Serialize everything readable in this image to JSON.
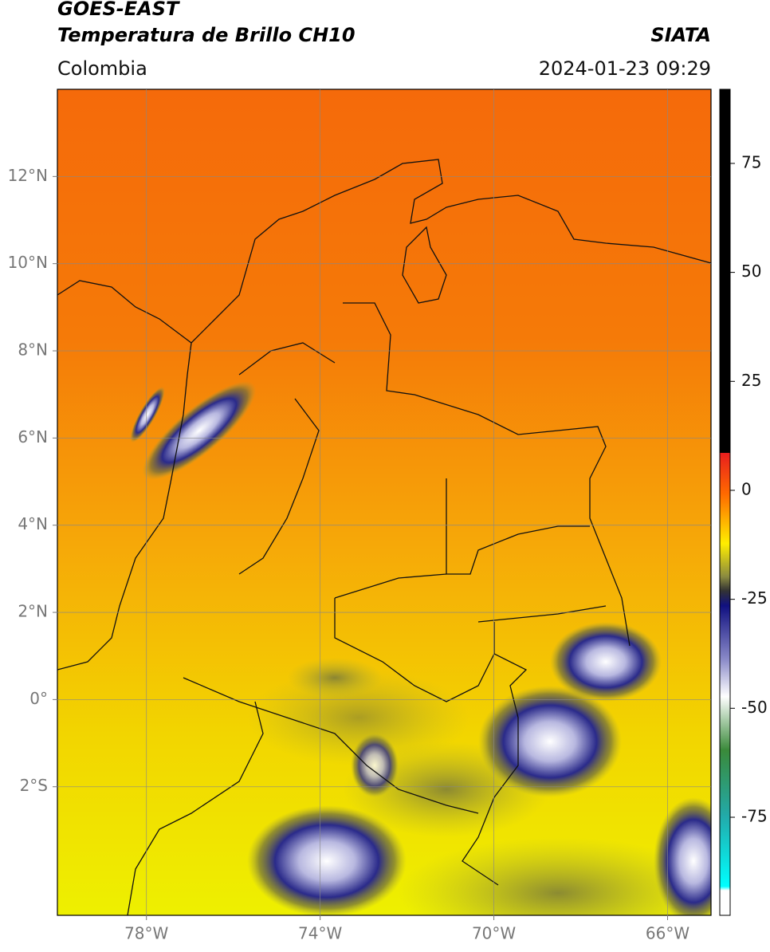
{
  "header": {
    "satellite": "GOES-EAST",
    "product": "Temperatura de Brillo CH10",
    "source": "SIATA",
    "region": "Colombia",
    "datetime": "2024-01-23 09:29"
  },
  "map": {
    "xlim": [
      -80.05,
      -65
    ],
    "ylim": [
      -4.95,
      14
    ],
    "grid": true,
    "xticks": [
      {
        "value": -78,
        "label": "78°W"
      },
      {
        "value": -74,
        "label": "74°W"
      },
      {
        "value": -70,
        "label": "70°W"
      },
      {
        "value": -66,
        "label": "66°W"
      }
    ],
    "yticks": [
      {
        "value": 12,
        "label": "12°N"
      },
      {
        "value": 10,
        "label": "10°N"
      },
      {
        "value": 8,
        "label": "8°N"
      },
      {
        "value": 6,
        "label": "6°N"
      },
      {
        "value": 4,
        "label": "4°N"
      },
      {
        "value": 2,
        "label": "2°N"
      },
      {
        "value": 0,
        "label": "0°"
      },
      {
        "value": -2,
        "label": "2°S"
      }
    ]
  },
  "colorbar": {
    "lim": [
      -97.5,
      92
    ],
    "ticks": [
      75,
      50,
      25,
      0,
      -25,
      -50,
      -75
    ]
  }
}
